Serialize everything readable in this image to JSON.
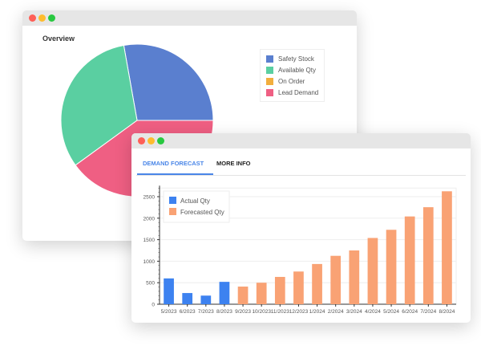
{
  "overview_window": {
    "title": "Overview",
    "chart_data": {
      "type": "pie",
      "labels": [
        "Safety Stock",
        "Available Qty",
        "On Order",
        "Lead Demand"
      ],
      "values": [
        27.8,
        32.2,
        0,
        40.0
      ],
      "colors": [
        "#5a7fcf",
        "#5acfa1",
        "#f2ae3d",
        "#ef5f83"
      ],
      "legend": "right"
    }
  },
  "forecast_window": {
    "tabs": [
      {
        "label": "DEMAND FORECAST",
        "active": true
      },
      {
        "label": "MORE INFO",
        "active": false
      }
    ],
    "chart_data": {
      "type": "bar",
      "categories": [
        "5/2023",
        "6/2023",
        "7/2023",
        "8/2023",
        "9/2023",
        "10/2023",
        "11/2023",
        "12/2023",
        "1/2024",
        "2/2024",
        "3/2024",
        "4/2024",
        "5/2024",
        "6/2024",
        "7/2024",
        "8/2024"
      ],
      "series": [
        {
          "name": "Actual Qty",
          "color": "#3d82f0",
          "values": [
            600,
            260,
            200,
            520,
            null,
            null,
            null,
            null,
            null,
            null,
            null,
            null,
            null,
            null,
            null,
            null
          ]
        },
        {
          "name": "Forecasted Qty",
          "color": "#f9a274",
          "values": [
            null,
            null,
            null,
            null,
            410,
            500,
            635,
            760,
            935,
            1125,
            1250,
            1540,
            1730,
            2040,
            2255,
            2625
          ]
        }
      ],
      "yticks": [
        0,
        500,
        1000,
        1500,
        2000,
        2500
      ],
      "ylim": [
        0,
        2700
      ],
      "grid": true,
      "legend": "top-left"
    }
  },
  "window_controls": {
    "close": "#fe5f57",
    "minimize": "#febc2e",
    "maximize": "#28c840"
  }
}
